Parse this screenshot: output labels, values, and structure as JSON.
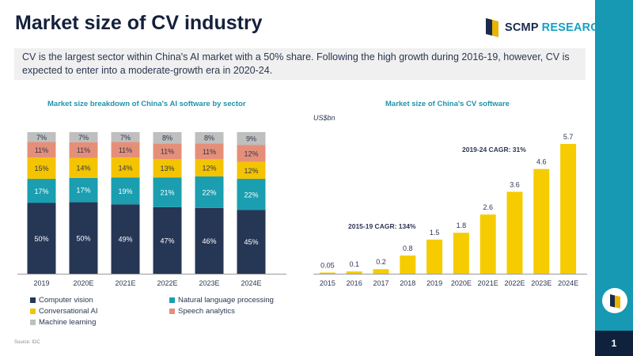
{
  "title": "Market size of CV industry",
  "logo": {
    "brand": "SCMP",
    "suffix": "RESEARCH"
  },
  "subtitle": "CV is the largest sector within China's AI market with a 50% share. Following the high growth during 2016-19, however, CV is expected to enter into a moderate-growth era in 2020-24.",
  "source": "Source: IDC",
  "page_number": "1",
  "colors": {
    "navy": "#263655",
    "teal": "#1a9eb0",
    "yellow": "#f5c400",
    "salmon": "#e58f79",
    "gray": "#bfbfbf",
    "bright_yellow": "#f6cc00"
  },
  "chart_data": [
    {
      "type": "bar",
      "stacked": true,
      "title": "Market size breakdown of China's AI software by sector",
      "categories": [
        "2019",
        "2020E",
        "2021E",
        "2022E",
        "2023E",
        "2024E"
      ],
      "series": [
        {
          "name": "Computer vision",
          "color": "#263655",
          "values": [
            50,
            50,
            49,
            47,
            46,
            45
          ]
        },
        {
          "name": "Natural language processing",
          "color": "#1a9eb0",
          "values": [
            17,
            17,
            19,
            21,
            22,
            22
          ]
        },
        {
          "name": "Conversational AI",
          "color": "#f5c400",
          "values": [
            15,
            14,
            14,
            13,
            12,
            12
          ]
        },
        {
          "name": "Speech analytics",
          "color": "#e58f79",
          "values": [
            11,
            11,
            11,
            11,
            11,
            12
          ]
        },
        {
          "name": "Machine learning",
          "color": "#bfbfbf",
          "values": [
            7,
            7,
            7,
            8,
            8,
            9
          ]
        }
      ],
      "label_suffix": "%",
      "ylim": [
        0,
        100
      ]
    },
    {
      "type": "bar",
      "title": "Market size of China's CV software",
      "ylabel": "US$bn",
      "categories": [
        "2015",
        "2016",
        "2017",
        "2018",
        "2019",
        "2020E",
        "2021E",
        "2022E",
        "2023E",
        "2024E"
      ],
      "values": [
        0.05,
        0.1,
        0.2,
        0.8,
        1.5,
        1.8,
        2.6,
        3.6,
        4.6,
        5.7
      ],
      "value_labels": [
        "0.05",
        "0.1",
        "0.2",
        "0.8",
        "1.5",
        "1.8",
        "2.6",
        "3.6",
        "4.6",
        "5.7"
      ],
      "ylim": [
        0,
        5.7
      ],
      "annotations": [
        "2015-19 CAGR: 134%",
        "2019-24 CAGR: 31%"
      ]
    }
  ]
}
